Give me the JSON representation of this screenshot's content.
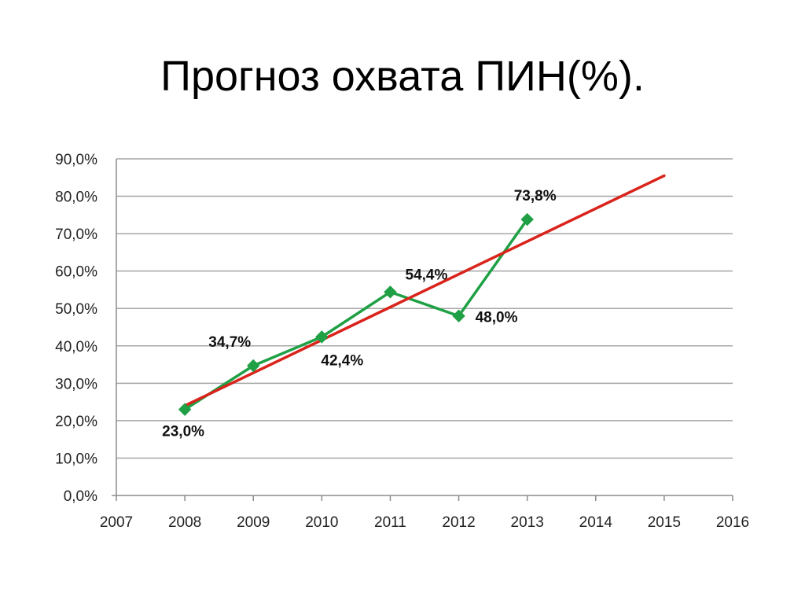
{
  "slide": {
    "title": "Прогноз охвата ПИН(%)."
  },
  "colors": {
    "series": "#1fa045",
    "trend": "#d9231b",
    "grid": "#a6a6a6",
    "axis": "#8c8c8c"
  },
  "chart_data": {
    "type": "line",
    "title": "Прогноз охвата ПИН(%).",
    "xlabel": "",
    "ylabel": "",
    "xlim": [
      2007,
      2016
    ],
    "ylim": [
      0,
      90
    ],
    "x_ticks": [
      "2007",
      "2008",
      "2009",
      "2010",
      "2011",
      "2012",
      "2013",
      "2014",
      "2015",
      "2016"
    ],
    "y_ticks": [
      "0,0%",
      "10,0%",
      "20,0%",
      "30,0%",
      "40,0%",
      "50,0%",
      "60,0%",
      "70,0%",
      "80,0%",
      "90,0%"
    ],
    "grid": true,
    "legend": "none",
    "series": [
      {
        "x": [
          2008,
          2009,
          2010,
          2011,
          2012,
          2013
        ],
        "values": [
          23.0,
          34.7,
          42.4,
          54.4,
          48.0,
          73.8
        ],
        "labels": [
          "23,0%",
          "34,7%",
          "42,4%",
          "54,4%",
          "48,0%",
          "73,8%"
        ],
        "marker": "diamond",
        "color": "#1fa045"
      }
    ],
    "trendline": {
      "type": "linear",
      "x": [
        2008,
        2015
      ],
      "values": [
        24.0,
        85.5
      ],
      "color": "#d9231b"
    }
  }
}
